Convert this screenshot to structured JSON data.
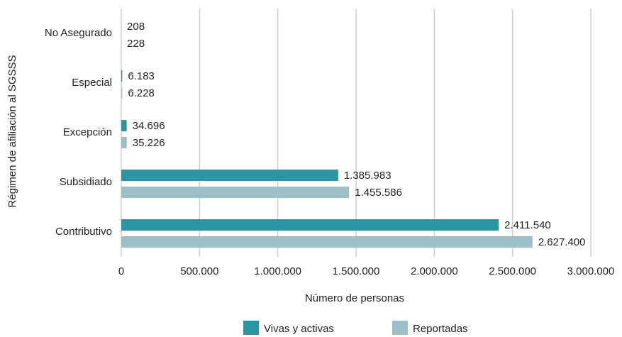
{
  "chart_data": {
    "type": "hbar",
    "x_label": "Número de personas",
    "y_label": "Régimen de afiliación al SGSSS",
    "categories": [
      "No Asegurado",
      "Especial",
      "Excepción",
      "Subsidiado",
      "Contributivo"
    ],
    "series": [
      {
        "name": "Vivas y activas",
        "color": "#2a95a3",
        "values": [
          208,
          6183,
          34696,
          1385983,
          2411540
        ],
        "value_labels": [
          "208",
          "6.183",
          "34.696",
          "1.385.983",
          "2.411.540"
        ]
      },
      {
        "name": "Reportadas",
        "color": "#9cc0c8",
        "values": [
          228,
          6228,
          35226,
          1455586,
          2627400
        ],
        "value_labels": [
          "228",
          "6.228",
          "35.226",
          "1.455.586",
          "2.627.400"
        ]
      }
    ],
    "xlim": [
      0,
      3000000
    ],
    "xticks": [
      0,
      {
        "value": 500000,
        "label": "500.000"
      },
      {
        "value": 1000000,
        "label": "1.000.000"
      },
      {
        "value": 1500000,
        "label": "1.500.000"
      },
      {
        "value": 2000000,
        "label": "2.000.000"
      },
      {
        "value": 2500000,
        "label": "2.500.000"
      },
      {
        "value": 3000000,
        "label": "3.000.000"
      }
    ],
    "grid": true,
    "legend": "bottom"
  }
}
